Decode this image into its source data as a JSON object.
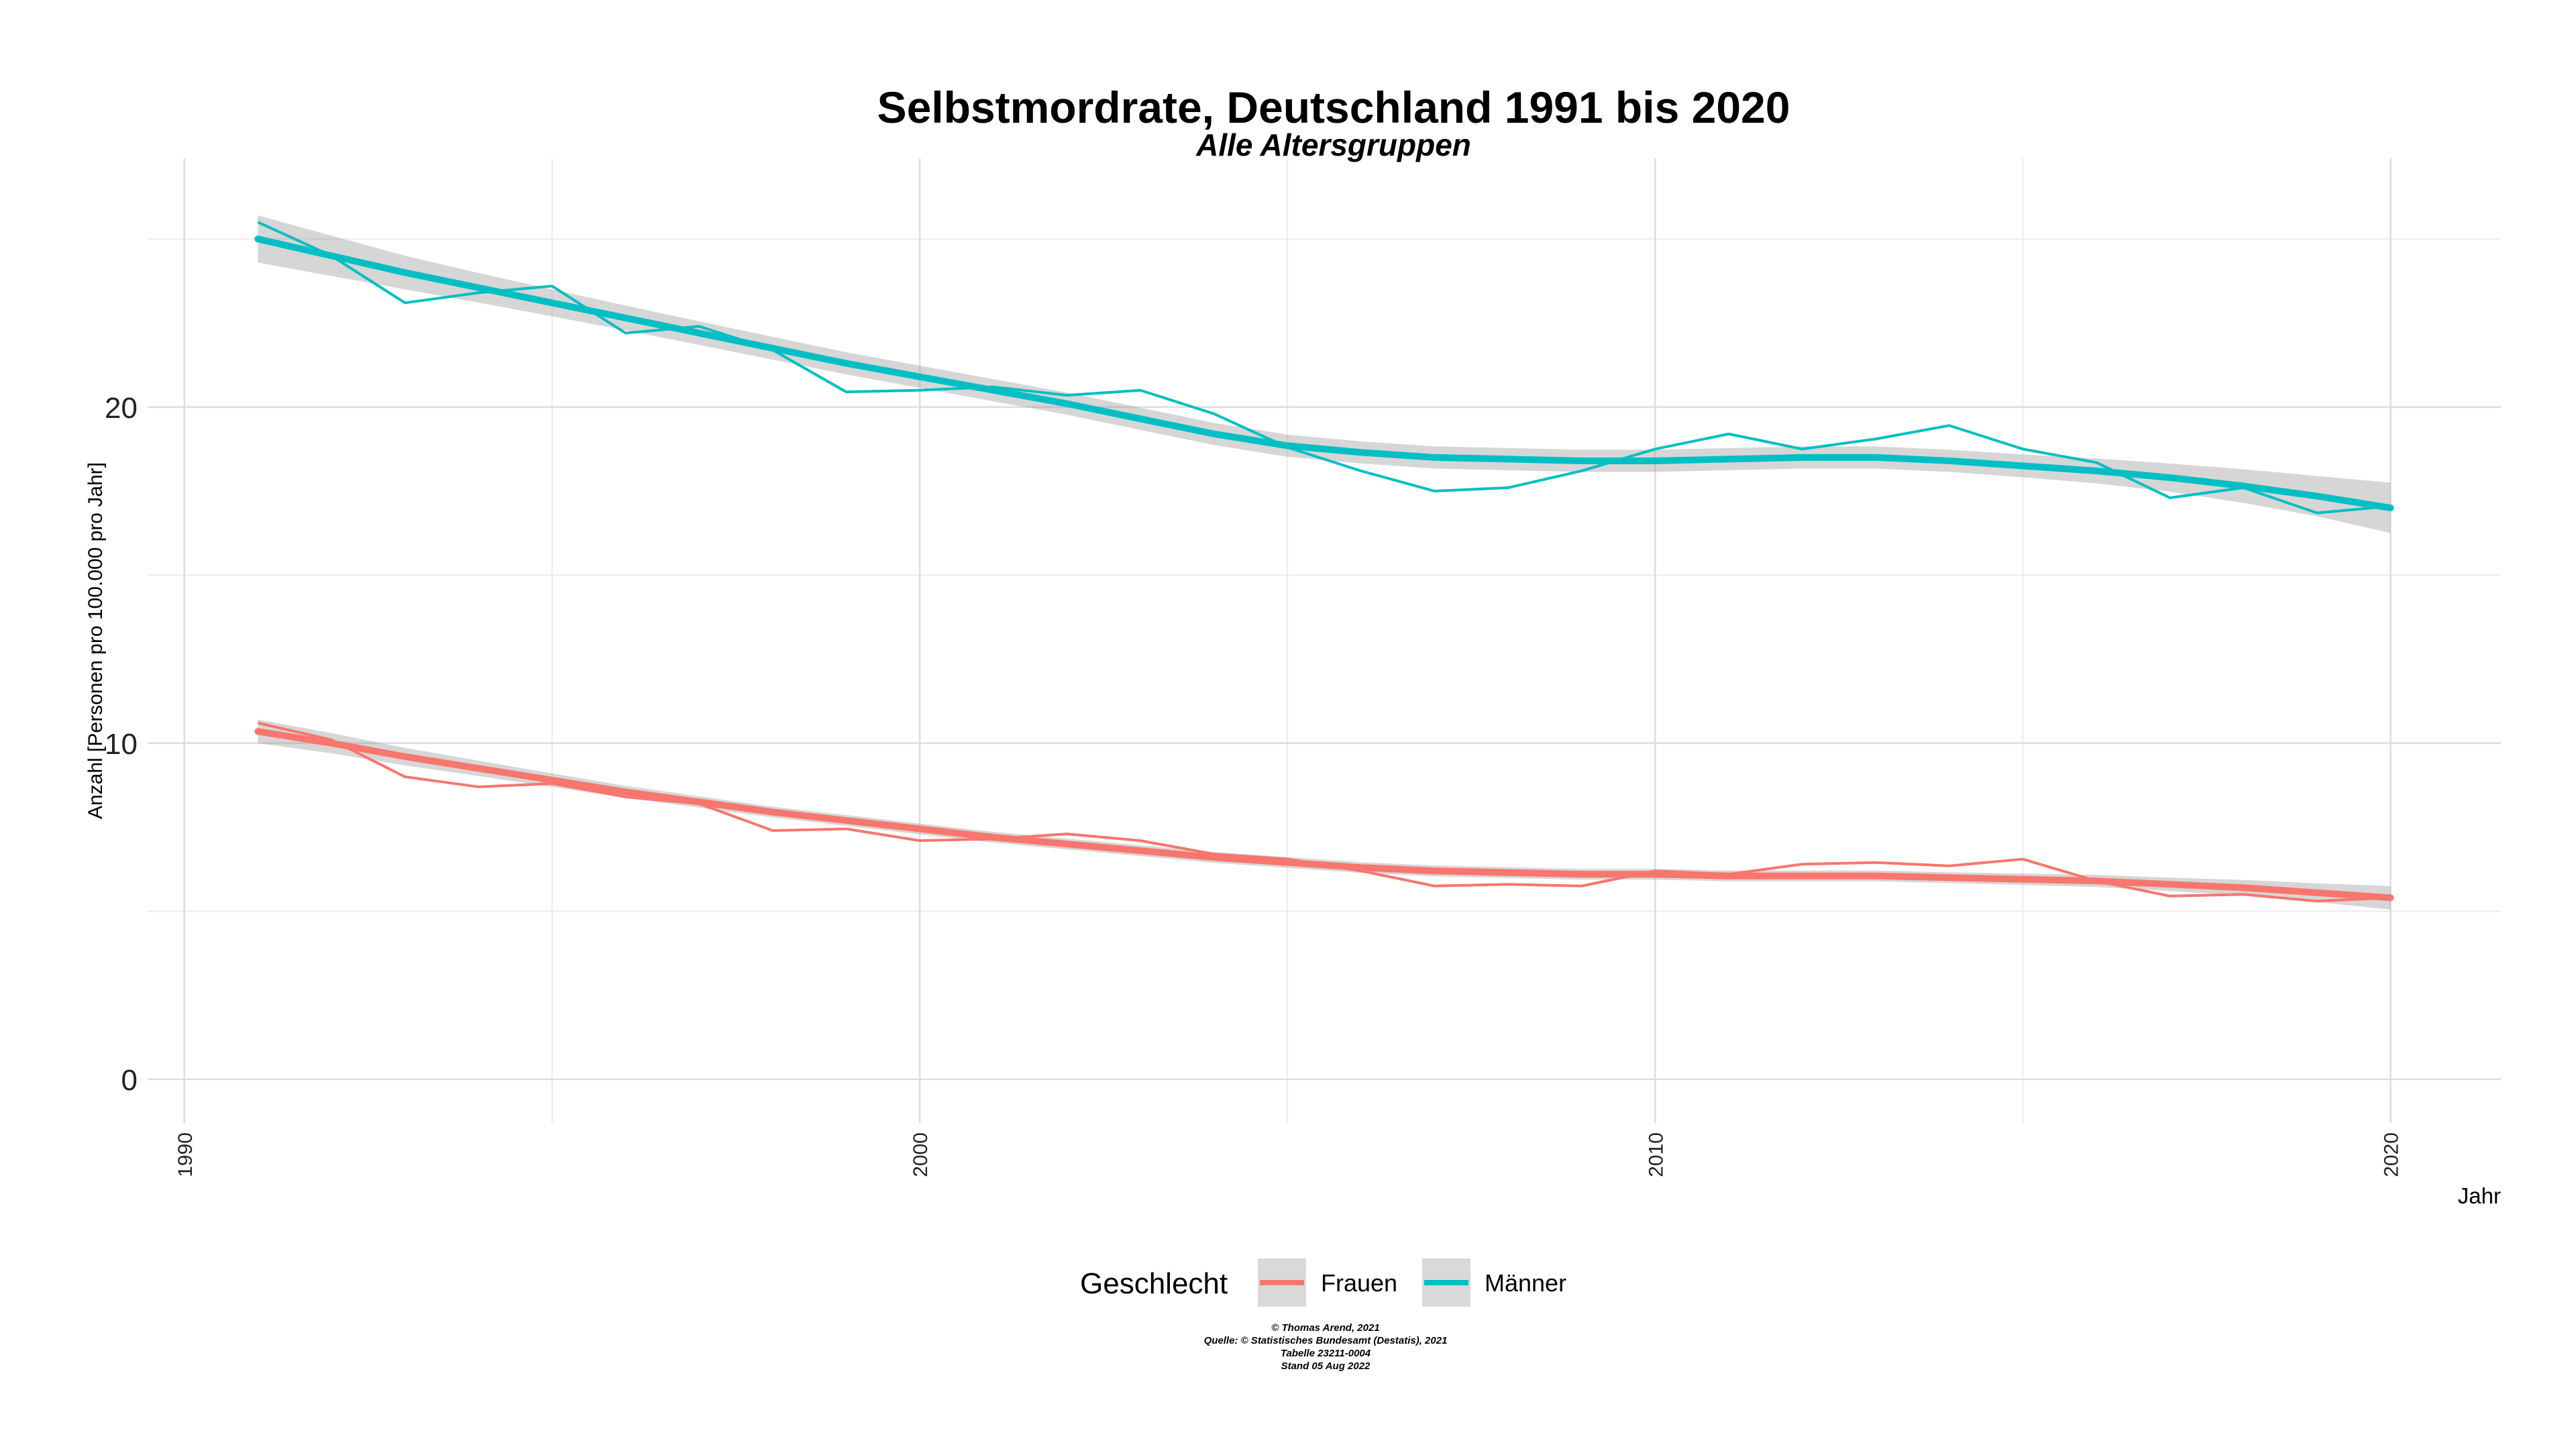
{
  "chart_data": {
    "type": "line",
    "title": "Selbstmordrate, Deutschland  1991 bis 2020",
    "subtitle": "Alle Altersgruppen",
    "xlabel": "Jahr",
    "ylabel": "Anzahl [Personen pro 100.000  pro Jahr]",
    "xlim": [
      1989.5,
      2021.5
    ],
    "ylim": [
      -1.3,
      27.4
    ],
    "x_ticks": [
      1990,
      2000,
      2010,
      2020
    ],
    "x_tick_labels": [
      "1990",
      "2000",
      "2010",
      "2020"
    ],
    "y_ticks": [
      0,
      10,
      20
    ],
    "y_tick_labels": [
      "0",
      "10",
      "20"
    ],
    "grid": true,
    "legend": {
      "title": "Geschlecht",
      "position": "bottom",
      "entries": [
        "Frauen",
        "Männer"
      ]
    },
    "x": [
      1991,
      1992,
      1993,
      1994,
      1995,
      1996,
      1997,
      1998,
      1999,
      2000,
      2001,
      2002,
      2003,
      2004,
      2005,
      2006,
      2007,
      2008,
      2009,
      2010,
      2011,
      2012,
      2013,
      2014,
      2015,
      2016,
      2017,
      2018,
      2019,
      2020
    ],
    "series": [
      {
        "name": "Frauen",
        "color": "#F8766D",
        "values": [
          10.6,
          10.1,
          9.0,
          8.7,
          8.8,
          8.4,
          8.2,
          7.4,
          7.45,
          7.1,
          7.15,
          7.3,
          7.1,
          6.7,
          6.55,
          6.2,
          5.75,
          5.8,
          5.75,
          6.2,
          6.1,
          6.4,
          6.45,
          6.35,
          6.55,
          5.9,
          5.45,
          5.5,
          5.3,
          5.4
        ],
        "smooth": [
          10.35,
          10.0,
          9.6,
          9.25,
          8.9,
          8.55,
          8.25,
          7.95,
          7.7,
          7.45,
          7.2,
          7.0,
          6.8,
          6.6,
          6.45,
          6.3,
          6.2,
          6.15,
          6.1,
          6.1,
          6.05,
          6.05,
          6.05,
          6.0,
          5.95,
          5.9,
          5.8,
          5.7,
          5.55,
          5.4
        ],
        "band_halfwidth": [
          0.35,
          0.3,
          0.26,
          0.23,
          0.2,
          0.18,
          0.17,
          0.16,
          0.16,
          0.16,
          0.16,
          0.16,
          0.16,
          0.16,
          0.16,
          0.16,
          0.16,
          0.16,
          0.16,
          0.16,
          0.16,
          0.16,
          0.16,
          0.16,
          0.17,
          0.18,
          0.2,
          0.23,
          0.28,
          0.35
        ]
      },
      {
        "name": "Männer",
        "color": "#00BFC4",
        "values": [
          25.5,
          24.5,
          23.1,
          23.4,
          23.6,
          22.2,
          22.4,
          21.7,
          20.45,
          20.5,
          20.6,
          20.35,
          20.5,
          19.8,
          18.8,
          18.1,
          17.5,
          17.6,
          18.1,
          18.75,
          19.2,
          18.75,
          19.05,
          19.45,
          18.75,
          18.35,
          17.3,
          17.6,
          16.85,
          17.05
        ],
        "smooth": [
          25.0,
          24.5,
          24.0,
          23.55,
          23.1,
          22.65,
          22.2,
          21.75,
          21.3,
          20.9,
          20.5,
          20.1,
          19.65,
          19.2,
          18.85,
          18.65,
          18.5,
          18.45,
          18.4,
          18.4,
          18.45,
          18.5,
          18.5,
          18.4,
          18.25,
          18.1,
          17.9,
          17.65,
          17.35,
          17.0
        ],
        "band_halfwidth": [
          0.7,
          0.6,
          0.5,
          0.44,
          0.4,
          0.37,
          0.35,
          0.34,
          0.33,
          0.33,
          0.33,
          0.33,
          0.33,
          0.33,
          0.33,
          0.33,
          0.33,
          0.33,
          0.33,
          0.33,
          0.33,
          0.33,
          0.33,
          0.33,
          0.34,
          0.37,
          0.42,
          0.5,
          0.6,
          0.75
        ]
      }
    ]
  },
  "caption": {
    "lines": [
      "© Thomas Arend, 2021",
      "Quelle: © Statistisches Bundesamt (Destatis), 2021",
      "Tabelle 23211-0004",
      "Stand 05 Aug 2022"
    ]
  }
}
